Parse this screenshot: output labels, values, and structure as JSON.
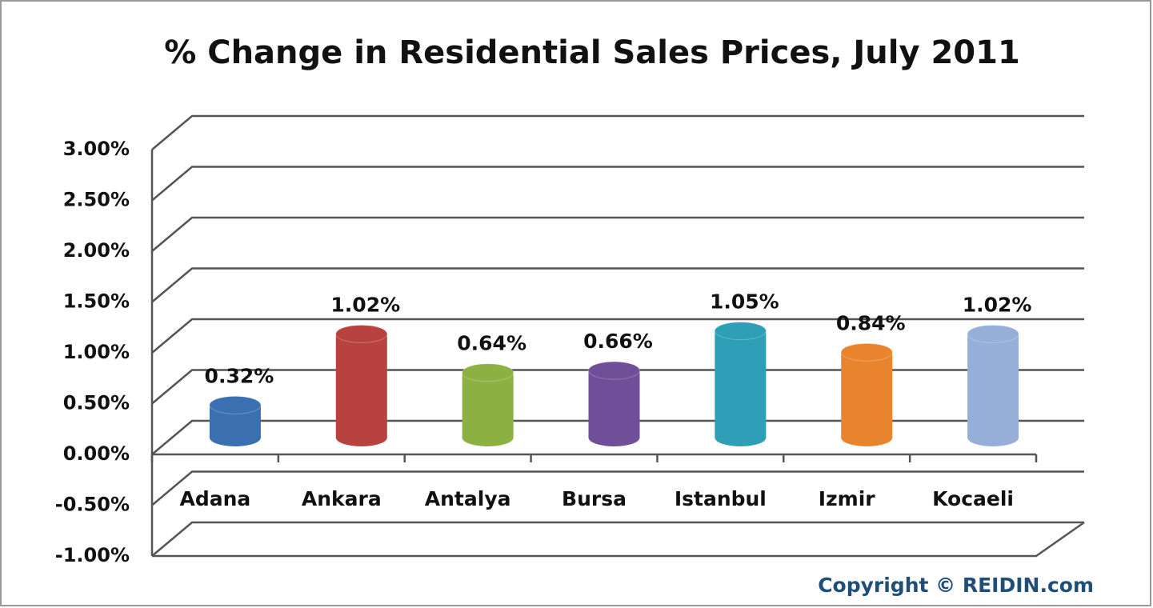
{
  "chart_data": {
    "type": "bar3d",
    "title": "% Change in Residential Sales Prices, July 2011",
    "categories": [
      "Adana",
      "Ankara",
      "Antalya",
      "Bursa",
      "Istanbul",
      "Izmir",
      "Kocaeli"
    ],
    "values": [
      0.32,
      1.02,
      0.64,
      0.66,
      1.05,
      0.84,
      1.02
    ],
    "value_labels": [
      "0.32%",
      "1.02%",
      "0.64%",
      "0.66%",
      "1.05%",
      "0.84%",
      "1.02%"
    ],
    "colors": [
      "#3a6fb0",
      "#b84240",
      "#8db043",
      "#6f4f98",
      "#2f9fb8",
      "#e8842e",
      "#95afd8"
    ],
    "ylim": [
      -1,
      3
    ],
    "yticks": [
      {
        "value": -1,
        "label": "-1.00%"
      },
      {
        "value": -0.5,
        "label": "-0.50%"
      },
      {
        "value": 0,
        "label": "0.00%"
      },
      {
        "value": 0.5,
        "label": "0.50%"
      },
      {
        "value": 1,
        "label": "1.00%"
      },
      {
        "value": 1.5,
        "label": "1.50%"
      },
      {
        "value": 2,
        "label": "2.00%"
      },
      {
        "value": 2.5,
        "label": "2.50%"
      },
      {
        "value": 3,
        "label": "3.00%"
      }
    ],
    "grid": true,
    "annotation": "Copyright © REIDIN.com"
  }
}
